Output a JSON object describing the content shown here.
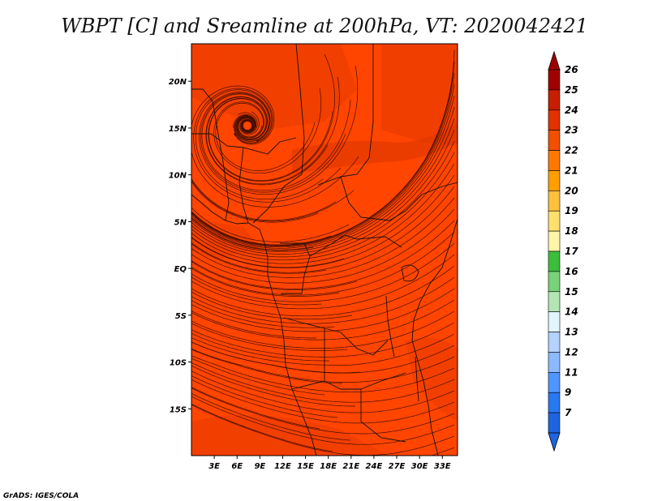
{
  "title": "WBPT [C] and Sreamline at 200hPa, VT: 2020042421",
  "credit": "GrADS: IGES/COLA",
  "map": {
    "type": "streamline-over-shaded-field",
    "variable": "WBPT",
    "unit": "C",
    "level": "200hPa",
    "valid_time": "2020042421",
    "lon_range": [
      0,
      35
    ],
    "lat_range": [
      -20,
      24
    ],
    "dominant_color": "#ff4500",
    "secondary_color": "#e63a00",
    "lat_ticks": [
      {
        "label": "20N",
        "lat": 20
      },
      {
        "label": "15N",
        "lat": 15
      },
      {
        "label": "10N",
        "lat": 10
      },
      {
        "label": "5N",
        "lat": 5
      },
      {
        "label": "EQ",
        "lat": 0
      },
      {
        "label": "5S",
        "lat": -5
      },
      {
        "label": "10S",
        "lat": -10
      },
      {
        "label": "15S",
        "lat": -15
      }
    ],
    "lon_ticks": [
      {
        "label": "3E",
        "lon": 3
      },
      {
        "label": "6E",
        "lon": 6
      },
      {
        "label": "9E",
        "lon": 9
      },
      {
        "label": "12E",
        "lon": 12
      },
      {
        "label": "15E",
        "lon": 15
      },
      {
        "label": "18E",
        "lon": 18
      },
      {
        "label": "21E",
        "lon": 21
      },
      {
        "label": "24E",
        "lon": 24
      },
      {
        "label": "27E",
        "lon": 27
      },
      {
        "label": "30E",
        "lon": 30
      },
      {
        "label": "33E",
        "lon": 33
      }
    ]
  },
  "colorbar": {
    "labels": [
      "26",
      "25",
      "24",
      "23",
      "22",
      "21",
      "20",
      "19",
      "18",
      "17",
      "16",
      "15",
      "14",
      "13",
      "12",
      "11",
      "9",
      "7"
    ],
    "colors": [
      "#a00000",
      "#c81e00",
      "#e13200",
      "#f05000",
      "#ff7800",
      "#ff9e00",
      "#ffc03c",
      "#ffe06e",
      "#fff5a8",
      "#3cbe3c",
      "#78d278",
      "#b4e6b4",
      "#e1f5ff",
      "#b4d2ff",
      "#8cb9ff",
      "#5096ff",
      "#2878f0",
      "#1e64e1"
    ]
  }
}
